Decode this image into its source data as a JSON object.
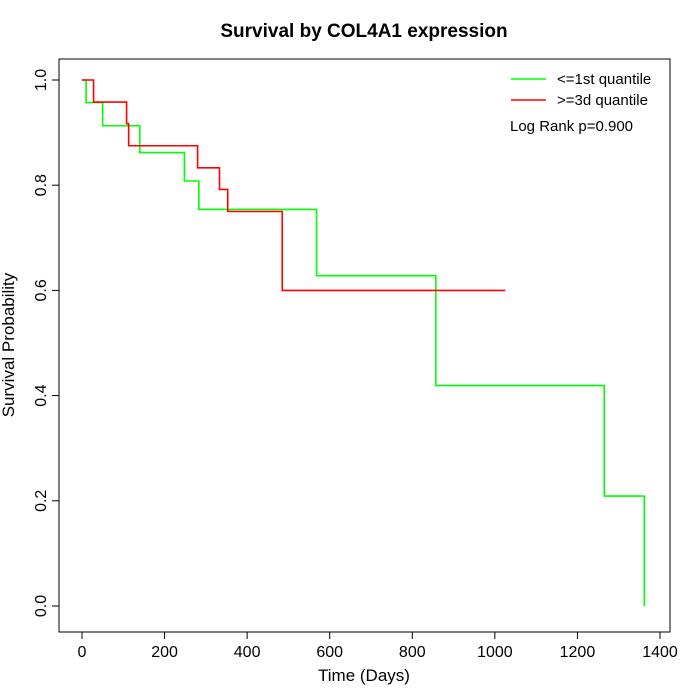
{
  "chart_data": {
    "type": "line",
    "title": "Survival by COL4A1 expression",
    "xlabel": "Time (Days)",
    "ylabel": "Survival Probability",
    "xlim": [
      0,
      1400
    ],
    "ylim": [
      0,
      1.0
    ],
    "x_ticks": [
      0,
      200,
      400,
      600,
      800,
      1000,
      1200,
      1400
    ],
    "x_tick_labels": [
      "0",
      "200",
      "400",
      "600",
      "800",
      "1000",
      "1200",
      "1400"
    ],
    "y_ticks": [
      0.0,
      0.2,
      0.4,
      0.6,
      0.8,
      1.0
    ],
    "y_tick_labels": [
      "0.0",
      "0.2",
      "0.4",
      "0.6",
      "0.8",
      "1.0"
    ],
    "grid": false,
    "legend_position": "top-right",
    "annotation": "Log Rank p=0.900",
    "series": [
      {
        "name": "<=1st quantile",
        "color": "#00ff00",
        "step_times": [
          0,
          10,
          50,
          140,
          248,
          283,
          568,
          857,
          1265,
          1362
        ],
        "survival": [
          1.0,
          0.957,
          0.913,
          0.862,
          0.808,
          0.754,
          0.628,
          0.419,
          0.209,
          0.0
        ],
        "end_time": 1362
      },
      {
        "name": ">=3d quantile",
        "color": "#ff0000",
        "step_times": [
          0,
          28,
          108,
          113,
          280,
          333,
          353,
          485
        ],
        "survival": [
          1.0,
          0.958,
          0.917,
          0.875,
          0.833,
          0.792,
          0.75,
          0.6
        ],
        "end_time": 1025
      }
    ]
  }
}
